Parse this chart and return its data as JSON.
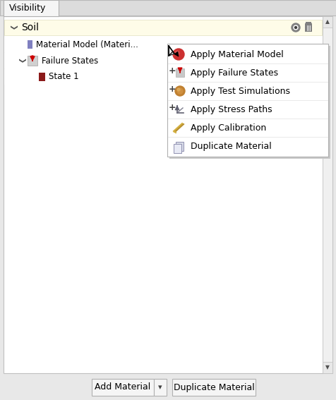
{
  "title": "Visibility",
  "bg_color": "#e8e8e8",
  "panel_bg": "#ffffff",
  "tab_text": "Visibility",
  "soil_row_bg": "#fefce8",
  "soil_text": "Soil",
  "dropdown_items": [
    "Apply Material Model",
    "Apply Failure States",
    "Apply Test Simulations",
    "Apply Stress Paths",
    "Apply Calibration",
    "Duplicate Material"
  ],
  "button1_label": "Add Material",
  "button2_label": "Duplicate Material",
  "text_color": "#000000",
  "font_size": 8.5,
  "tab_font_size": 9,
  "panel_border": "#b0b0b0",
  "scrollbar_color": "#c8c8c8"
}
